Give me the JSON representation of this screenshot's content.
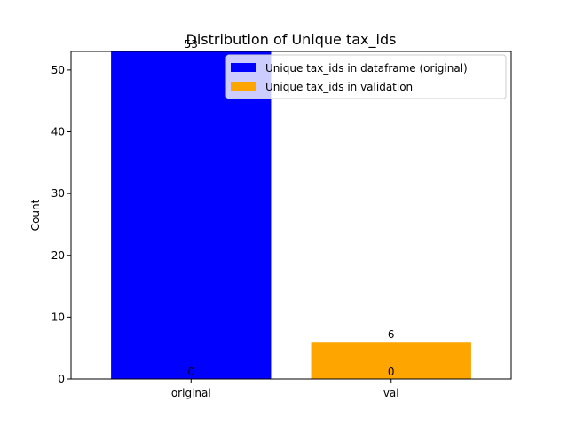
{
  "chart_data": {
    "type": "bar",
    "title": "Distribution of Unique tax_ids",
    "xlabel": "",
    "ylabel": "Count",
    "categories": [
      "original",
      "val"
    ],
    "series": [
      {
        "name": "Unique tax_ids in dataframe (original)",
        "color": "#0000ff",
        "values": [
          53,
          0
        ]
      },
      {
        "name": "Unique tax_ids in validation",
        "color": "#ffa500",
        "values": [
          0,
          6
        ]
      }
    ],
    "ylim": [
      0,
      53
    ],
    "yticks": [
      "0",
      "10",
      "20",
      "30",
      "40",
      "50"
    ],
    "data_labels": [
      {
        "category": "original",
        "series": "Unique tax_ids in dataframe (original)",
        "text": "53"
      },
      {
        "category": "original",
        "series": "Unique tax_ids in validation",
        "text": "0"
      },
      {
        "category": "val",
        "series": "Unique tax_ids in dataframe (original)",
        "text": "0"
      },
      {
        "category": "val",
        "series": "Unique tax_ids in validation",
        "text": "6"
      }
    ],
    "legend": "top-right",
    "grid": false
  }
}
